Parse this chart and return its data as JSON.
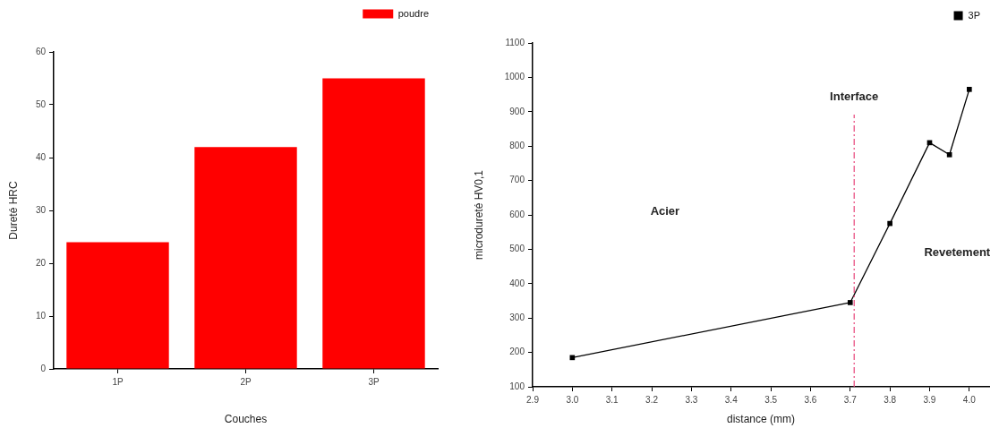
{
  "chart_data": [
    {
      "type": "bar",
      "categories": [
        "1P",
        "2P",
        "3P"
      ],
      "series": [
        {
          "name": "poudre",
          "color": "#ff0000",
          "values": [
            24,
            42,
            55
          ]
        }
      ],
      "xlabel": "Couches",
      "ylabel": "Dureté HRC",
      "ylim": [
        0,
        60
      ],
      "yticks": [
        0,
        10,
        20,
        30,
        40,
        50,
        60
      ],
      "legend": "top right"
    },
    {
      "type": "line",
      "x": [
        3.0,
        3.7,
        3.8,
        3.9,
        3.95,
        4.0
      ],
      "series": [
        {
          "name": "3P",
          "color": "#000000",
          "values": [
            185,
            345,
            575,
            810,
            775,
            965
          ]
        }
      ],
      "xlabel": "distance (mm)",
      "ylabel": "microdureté HV0,1",
      "xlim": [
        2.9,
        4.05
      ],
      "xticks": [
        2.9,
        {
          "value": 3.0,
          "label": "3.0"
        },
        3.1,
        3.2,
        3.3,
        3.4,
        3.5,
        3.6,
        3.7,
        3.8,
        3.9,
        {
          "value": 4.0,
          "label": "4.0"
        }
      ],
      "ylim": [
        100,
        1100
      ],
      "yticks": [
        100,
        200,
        300,
        400,
        500,
        600,
        700,
        800,
        900,
        1000,
        1100
      ],
      "marker": "square",
      "line_style": "solid",
      "legend": "top right",
      "ref_lines": [
        {
          "axis": "x",
          "value": 3.71,
          "label": "Interface",
          "color": "#e8457a",
          "line_style": "dashed"
        }
      ],
      "annotations": [
        "Acier",
        "Revetement"
      ]
    }
  ]
}
